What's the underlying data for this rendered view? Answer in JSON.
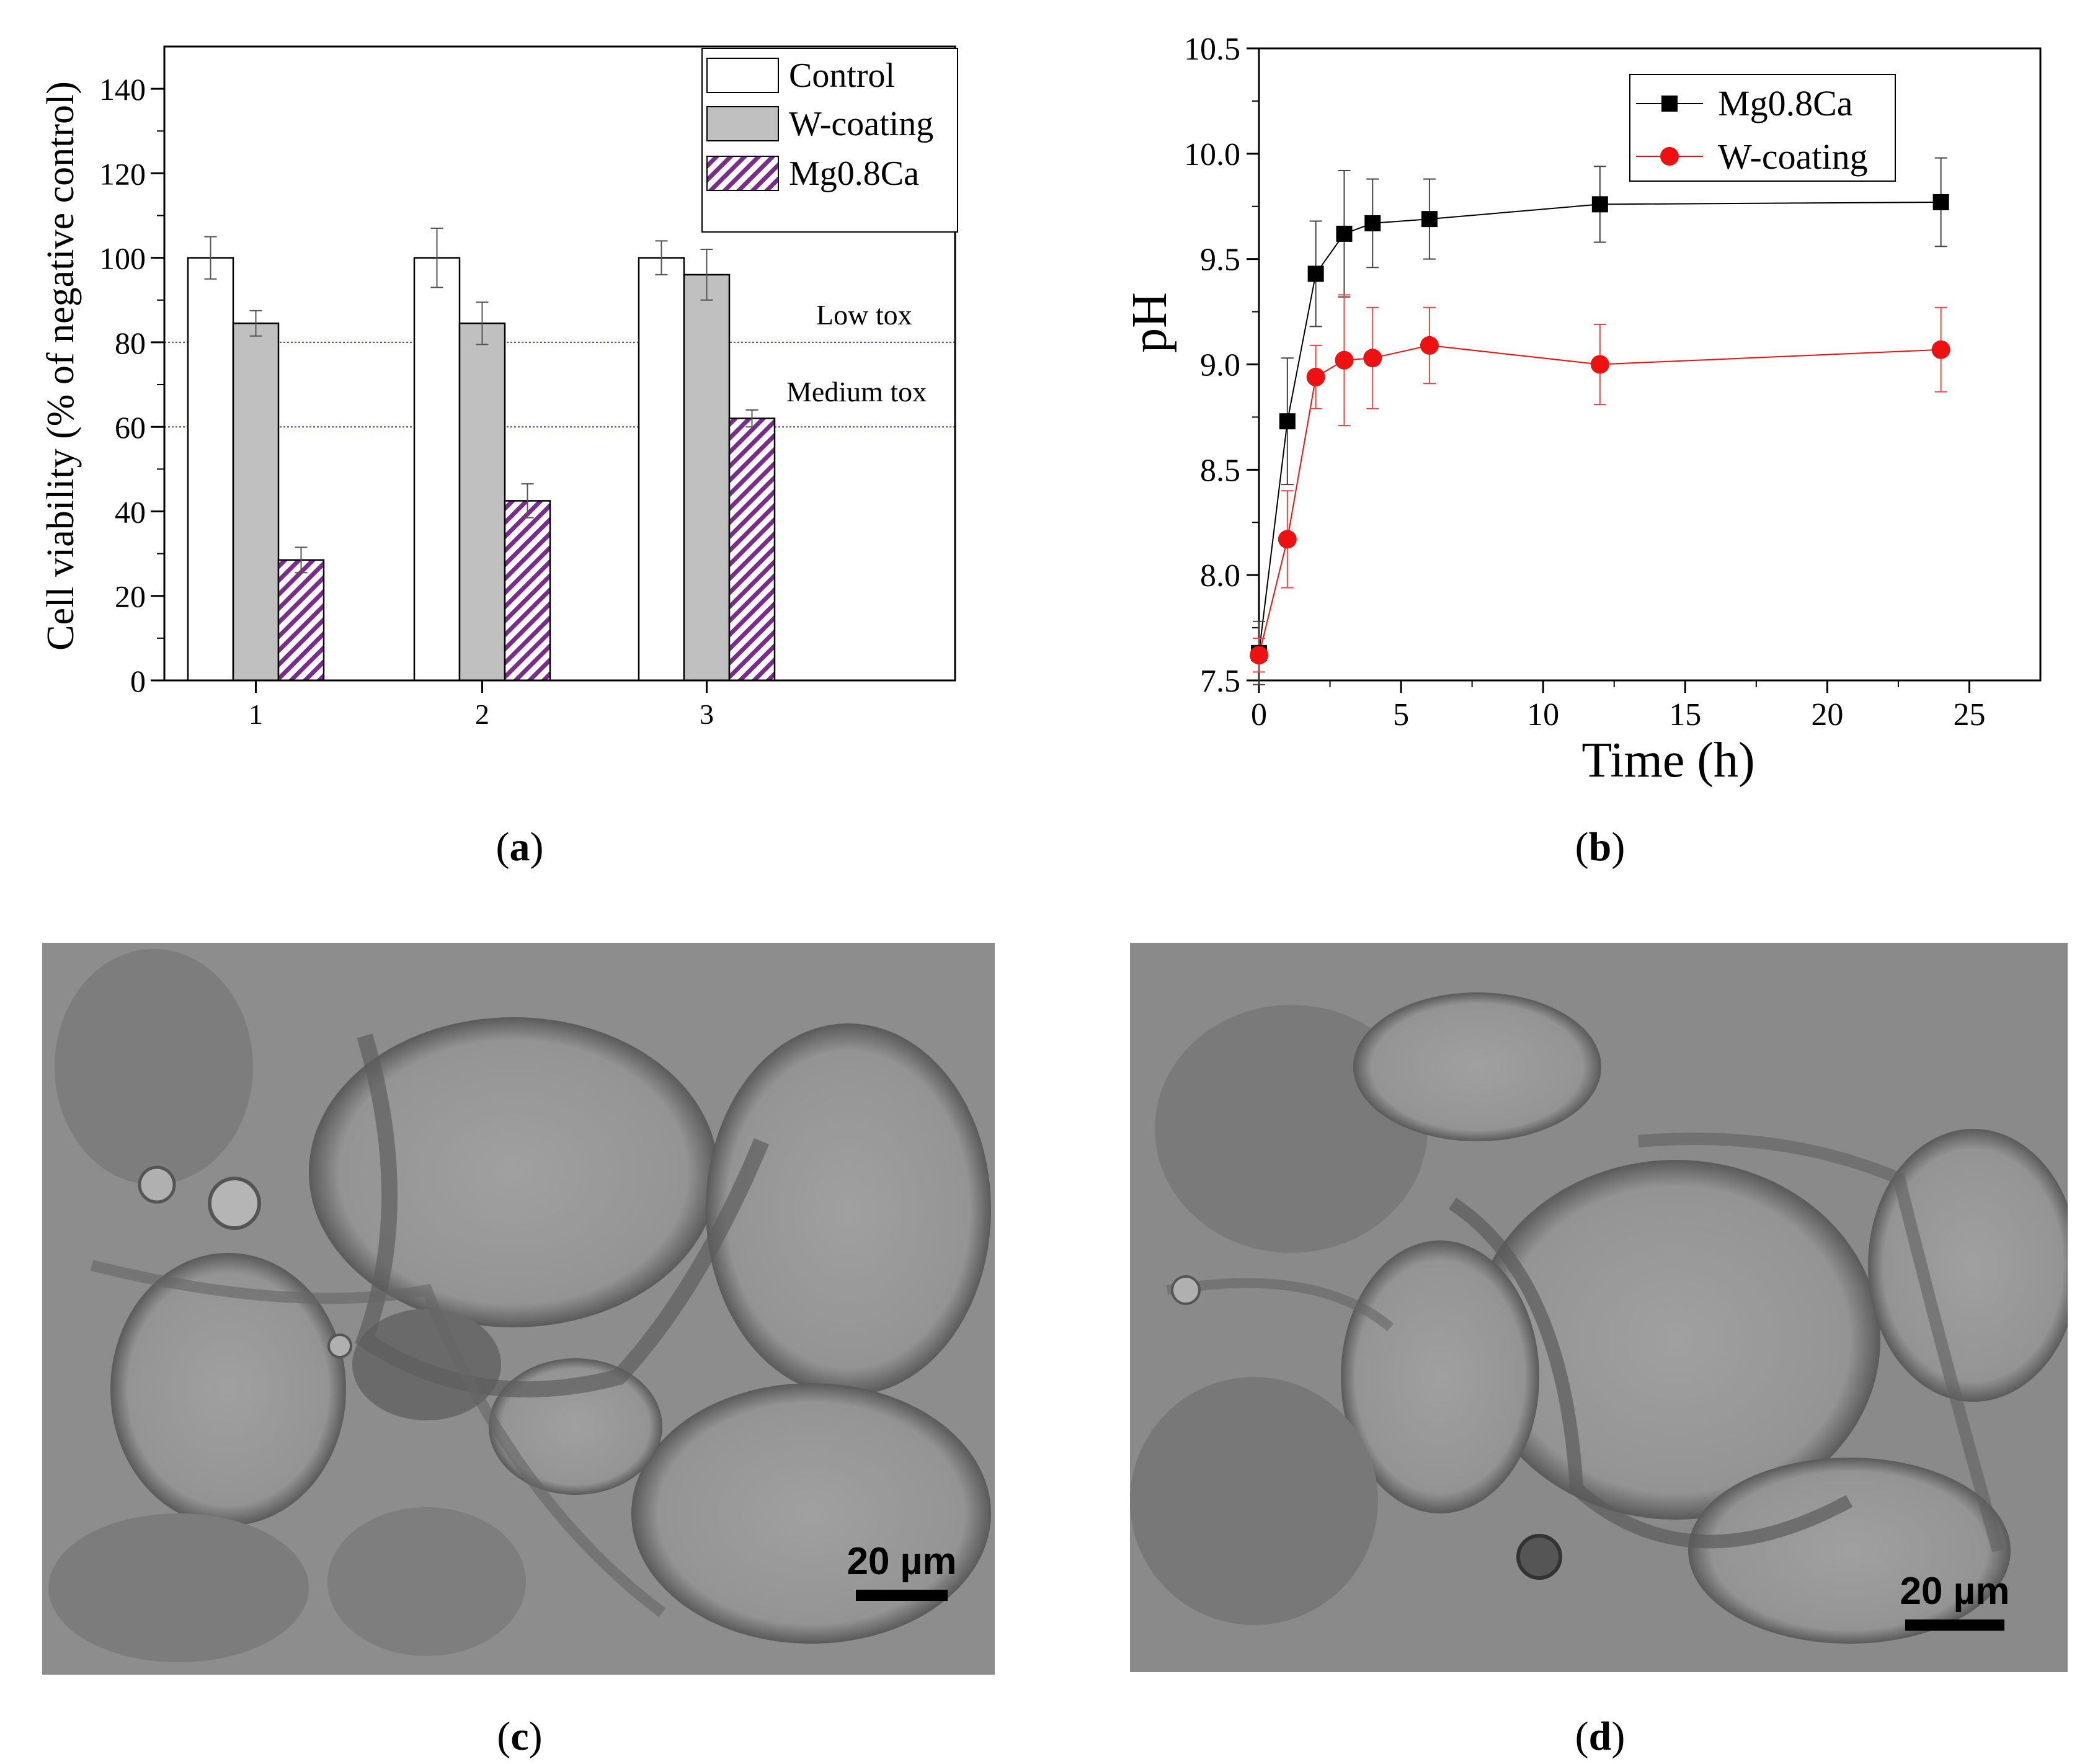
{
  "figure": {
    "panels": [
      {
        "label": "a"
      },
      {
        "label": "b"
      },
      {
        "label": "c",
        "scale_bar": "20 µm"
      },
      {
        "label": "d",
        "scale_bar": "20 µm"
      }
    ]
  },
  "colors": {
    "control_fill": "#ffffff",
    "wcoating_fill": "#c0c0c0",
    "mg_hatch": "#7a2b8c",
    "threshold_line": "#3b3bd6",
    "mg_series": "#000000",
    "w_series": "#ee1111"
  },
  "chart_data": [
    {
      "type": "bar",
      "panel": "a",
      "ylabel": "Cell viability (% of negative control)",
      "ylim": [
        0,
        150
      ],
      "yticks": [
        0,
        20,
        40,
        60,
        80,
        100,
        120,
        140
      ],
      "categories": [
        "1",
        "2",
        "3"
      ],
      "series": [
        {
          "name": "Control",
          "values": [
            100,
            100,
            100
          ],
          "errors": [
            5,
            7,
            4
          ]
        },
        {
          "name": "W-coating",
          "values": [
            84.5,
            84.5,
            96
          ],
          "errors": [
            3,
            5,
            6
          ]
        },
        {
          "name": "Mg0.8Ca",
          "values": [
            28.5,
            42.5,
            62
          ],
          "errors": [
            3,
            4,
            2
          ]
        }
      ],
      "thresholds": [
        {
          "label": "Low tox",
          "value": 80
        },
        {
          "label": "Medium tox",
          "value": 60
        }
      ],
      "legend": "top-right"
    },
    {
      "type": "line",
      "panel": "b",
      "xlabel": "Time (h)",
      "ylabel": "pH",
      "xlim": [
        0,
        27.5
      ],
      "ylim": [
        7.5,
        10.5
      ],
      "xticks": [
        0,
        5,
        10,
        15,
        20,
        25
      ],
      "yticks": [
        "7.5",
        "8.0",
        "8.5",
        "9.0",
        "9.5",
        "10.0",
        "10.5"
      ],
      "series": [
        {
          "name": "Mg0.8Ca",
          "marker": "square",
          "x": [
            0,
            1,
            2,
            3,
            4,
            6,
            12,
            24
          ],
          "y": [
            7.63,
            8.73,
            9.43,
            9.62,
            9.67,
            9.69,
            9.76,
            9.77
          ],
          "errors": [
            0.15,
            0.3,
            0.25,
            0.3,
            0.21,
            0.19,
            0.18,
            0.21
          ]
        },
        {
          "name": "W-coating",
          "marker": "circle",
          "x": [
            0,
            1,
            2,
            3,
            4,
            6,
            12,
            24
          ],
          "y": [
            7.62,
            8.17,
            8.94,
            9.02,
            9.03,
            9.09,
            9.0,
            9.07
          ],
          "errors": [
            0.08,
            0.23,
            0.15,
            0.31,
            0.24,
            0.18,
            0.19,
            0.2
          ]
        }
      ],
      "legend": "top-right"
    }
  ]
}
